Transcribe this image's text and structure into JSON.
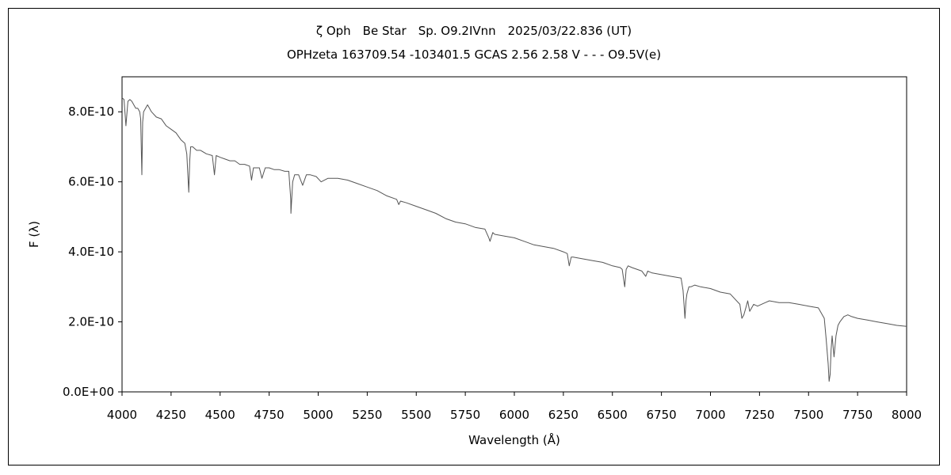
{
  "chart_data": {
    "type": "line",
    "title": "ζ Oph　Be Star　Sp. O9.2IVnn　2025/03/22.836 (UT)",
    "subtitle": "OPHzeta 163709.54 -103401.5 GCAS 2.56 2.58 V - - - O9.5V(e)",
    "xlabel": "Wavelength (Å)",
    "ylabel": "F (λ)",
    "xlim": [
      4000,
      8000
    ],
    "ylim": [
      0,
      9e-10
    ],
    "grid": false,
    "legend": "none",
    "x_ticks": [
      4000,
      4250,
      4500,
      4750,
      5000,
      5250,
      5500,
      5750,
      6000,
      6250,
      6500,
      6750,
      7000,
      7250,
      7500,
      7750,
      8000
    ],
    "x_tick_labels": [
      "4000",
      "4250",
      "4500",
      "4750",
      "5000",
      "5250",
      "5500",
      "5750",
      "6000",
      "6250",
      "6500",
      "6750",
      "7000",
      "7250",
      "7500",
      "7750",
      "8000"
    ],
    "y_ticks": [
      0,
      2e-10,
      4e-10,
      6e-10,
      8e-10
    ],
    "y_tick_labels": [
      "0.0E+00",
      "2.0E-10",
      "4.0E-10",
      "6.0E-10",
      "8.0E-10"
    ],
    "line_color": "#555555",
    "series": [
      {
        "x": [
          4000,
          4010,
          4020,
          4030,
          4040,
          4050,
          4060,
          4070,
          4080,
          4090,
          4095,
          4101,
          4105,
          4110,
          4120,
          4130,
          4150,
          4175,
          4200,
          4225,
          4250,
          4275,
          4300,
          4320,
          4330,
          4340,
          4345,
          4350,
          4360,
          4380,
          4400,
          4430,
          4460,
          4471,
          4480,
          4500,
          4525,
          4550,
          4575,
          4600,
          4625,
          4650,
          4660,
          4670,
          4680,
          4700,
          4713,
          4730,
          4750,
          4775,
          4800,
          4830,
          4850,
          4860,
          4861,
          4870,
          4880,
          4900,
          4921,
          4940,
          4960,
          4990,
          5015,
          5050,
          5100,
          5150,
          5200,
          5250,
          5300,
          5350,
          5400,
          5411,
          5420,
          5450,
          5500,
          5550,
          5600,
          5650,
          5700,
          5750,
          5800,
          5850,
          5870,
          5876,
          5890,
          5900,
          5950,
          6000,
          6050,
          6100,
          6150,
          6200,
          6250,
          6270,
          6280,
          6290,
          6300,
          6350,
          6400,
          6450,
          6500,
          6540,
          6550,
          6563,
          6570,
          6580,
          6600,
          6650,
          6670,
          6680,
          6700,
          6750,
          6800,
          6850,
          6860,
          6870,
          6875,
          6880,
          6890,
          6900,
          6920,
          6950,
          7000,
          7050,
          7100,
          7150,
          7160,
          7170,
          7180,
          7190,
          7200,
          7220,
          7240,
          7260,
          7280,
          7300,
          7350,
          7400,
          7450,
          7500,
          7550,
          7580,
          7590,
          7600,
          7605,
          7610,
          7615,
          7620,
          7630,
          7640,
          7650,
          7660,
          7680,
          7700,
          7720,
          7750,
          7800,
          7850,
          7900,
          7950,
          8000
        ],
        "values": [
          8.4e-10,
          8.35e-10,
          7.6e-10,
          8.3e-10,
          8.35e-10,
          8.3e-10,
          8.2e-10,
          8.1e-10,
          8.1e-10,
          8e-10,
          7.8e-10,
          6.2e-10,
          7.7e-10,
          8e-10,
          8.1e-10,
          8.2e-10,
          8e-10,
          7.85e-10,
          7.8e-10,
          7.6e-10,
          7.5e-10,
          7.4e-10,
          7.2e-10,
          7.1e-10,
          6.8e-10,
          5.7e-10,
          6.6e-10,
          7e-10,
          7e-10,
          6.9e-10,
          6.9e-10,
          6.8e-10,
          6.75e-10,
          6.2e-10,
          6.75e-10,
          6.7e-10,
          6.65e-10,
          6.6e-10,
          6.6e-10,
          6.5e-10,
          6.5e-10,
          6.45e-10,
          6.05e-10,
          6.4e-10,
          6.4e-10,
          6.4e-10,
          6.1e-10,
          6.4e-10,
          6.4e-10,
          6.35e-10,
          6.35e-10,
          6.3e-10,
          6.3e-10,
          5.5e-10,
          5.1e-10,
          6e-10,
          6.2e-10,
          6.2e-10,
          5.9e-10,
          6.2e-10,
          6.2e-10,
          6.15e-10,
          6e-10,
          6.1e-10,
          6.1e-10,
          6.05e-10,
          5.95e-10,
          5.85e-10,
          5.75e-10,
          5.6e-10,
          5.5e-10,
          5.35e-10,
          5.45e-10,
          5.4e-10,
          5.3e-10,
          5.2e-10,
          5.1e-10,
          4.95e-10,
          4.85e-10,
          4.8e-10,
          4.7e-10,
          4.65e-10,
          4.4e-10,
          4.3e-10,
          4.55e-10,
          4.5e-10,
          4.45e-10,
          4.4e-10,
          4.3e-10,
          4.2e-10,
          4.15e-10,
          4.1e-10,
          4e-10,
          3.95e-10,
          3.6e-10,
          3.85e-10,
          3.85e-10,
          3.8e-10,
          3.75e-10,
          3.7e-10,
          3.6e-10,
          3.55e-10,
          3.5e-10,
          3e-10,
          3.5e-10,
          3.6e-10,
          3.55e-10,
          3.45e-10,
          3.3e-10,
          3.45e-10,
          3.4e-10,
          3.35e-10,
          3.3e-10,
          3.25e-10,
          2.9e-10,
          2.1e-10,
          2.6e-10,
          2.8e-10,
          3e-10,
          3e-10,
          3.05e-10,
          3e-10,
          2.95e-10,
          2.85e-10,
          2.8e-10,
          2.5e-10,
          2.1e-10,
          2.2e-10,
          2.4e-10,
          2.6e-10,
          2.3e-10,
          2.5e-10,
          2.45e-10,
          2.5e-10,
          2.55e-10,
          2.6e-10,
          2.55e-10,
          2.55e-10,
          2.5e-10,
          2.45e-10,
          2.4e-10,
          2.1e-10,
          1.5e-10,
          8e-11,
          3e-11,
          5e-11,
          1.2e-10,
          1.6e-10,
          1e-10,
          1.6e-10,
          1.9e-10,
          2e-10,
          2.15e-10,
          2.2e-10,
          2.15e-10,
          2.1e-10,
          2.05e-10,
          2e-10,
          1.95e-10,
          1.9e-10,
          1.87e-10
        ]
      }
    ]
  }
}
